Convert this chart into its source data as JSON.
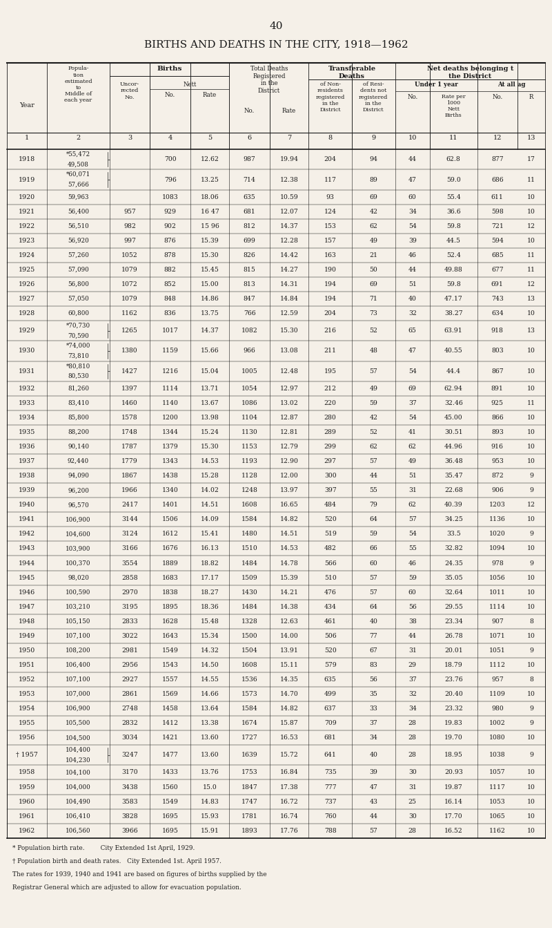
{
  "page_number": "40",
  "title": "BIRTHS AND DEATHS IN THE CITY, 1918—1962",
  "background_color": "#f5f0e8",
  "text_color": "#1a1a1a",
  "rows": [
    [
      "1918",
      "*55,472",
      "49,508",
      "",
      "700",
      "12.62",
      "987",
      "19.94",
      "204",
      "94",
      "44",
      "62.8",
      "877",
      "17"
    ],
    [
      "1919",
      "*60,071",
      "57,666",
      "",
      "796",
      "13.25",
      "714",
      "12.38",
      "117",
      "89",
      "47",
      "59.0",
      "686",
      "11"
    ],
    [
      "1920",
      "59,963",
      "",
      "",
      "1083",
      "18.06",
      "635",
      "10.59",
      "93",
      "69",
      "60",
      "55.4",
      "611",
      "10"
    ],
    [
      "1921",
      "56,400",
      "",
      "957",
      "929",
      "16 47",
      "681",
      "12.07",
      "124",
      "42",
      "34",
      "36.6",
      "598",
      "10"
    ],
    [
      "1922",
      "56,510",
      "",
      "982",
      "902",
      "15 96",
      "812",
      "14.37",
      "153",
      "62",
      "54",
      "59.8",
      "721",
      "12"
    ],
    [
      "1923",
      "56,920",
      "",
      "997",
      "876",
      "15.39",
      "699",
      "12.28",
      "157",
      "49",
      "39",
      "44.5",
      "594",
      "10"
    ],
    [
      "1924",
      "57,260",
      "",
      "1052",
      "878",
      "15.30",
      "826",
      "14.42",
      "163",
      "21",
      "46",
      "52.4",
      "685",
      "11"
    ],
    [
      "1925",
      "57,090",
      "",
      "1079",
      "882",
      "15.45",
      "815",
      "14.27",
      "190",
      "50",
      "44",
      "49.88",
      "677",
      "11"
    ],
    [
      "1926",
      "56,800",
      "",
      "1072",
      "852",
      "15.00",
      "813",
      "14.31",
      "194",
      "69",
      "51",
      "59.8",
      "691",
      "12"
    ],
    [
      "1927",
      "57,050",
      "",
      "1079",
      "848",
      "14.86",
      "847",
      "14.84",
      "194",
      "71",
      "40",
      "47.17",
      "743",
      "13"
    ],
    [
      "1928",
      "60,800",
      "",
      "1162",
      "836",
      "13.75",
      "766",
      "12.59",
      "204",
      "73",
      "32",
      "38.27",
      "634",
      "10"
    ],
    [
      "1929",
      "*70,730",
      "70,590",
      "1265",
      "1017",
      "14.37",
      "1082",
      "15.30",
      "216",
      "52",
      "65",
      "63.91",
      "918",
      "13"
    ],
    [
      "1930",
      "*74,000",
      "73,810",
      "1380",
      "1159",
      "15.66",
      "966",
      "13.08",
      "211",
      "48",
      "47",
      "40.55",
      "803",
      "10"
    ],
    [
      "1931",
      "*80,810",
      "80,530",
      "1427",
      "1216",
      "15.04",
      "1005",
      "12.48",
      "195",
      "57",
      "54",
      "44.4",
      "867",
      "10"
    ],
    [
      "1932",
      "81,260",
      "",
      "1397",
      "1114",
      "13.71",
      "1054",
      "12.97",
      "212",
      "49",
      "69",
      "62.94",
      "891",
      "10"
    ],
    [
      "1933",
      "83,410",
      "",
      "1460",
      "1140",
      "13.67",
      "1086",
      "13.02",
      "220",
      "59",
      "37",
      "32.46",
      "925",
      "11"
    ],
    [
      "1934",
      "85,800",
      "",
      "1578",
      "1200",
      "13.98",
      "1104",
      "12.87",
      "280",
      "42",
      "54",
      "45.00",
      "866",
      "10"
    ],
    [
      "1935",
      "88,200",
      "",
      "1748",
      "1344",
      "15.24",
      "1130",
      "12.81",
      "289",
      "52",
      "41",
      "30.51",
      "893",
      "10"
    ],
    [
      "1936",
      "90,140",
      "",
      "1787",
      "1379",
      "15.30",
      "1153",
      "12.79",
      "299",
      "62",
      "62",
      "44.96",
      "916",
      "10"
    ],
    [
      "1937",
      "92,440",
      "",
      "1779",
      "1343",
      "14.53",
      "1193",
      "12.90",
      "297",
      "57",
      "49",
      "36.48",
      "953",
      "10"
    ],
    [
      "1938",
      "94,090",
      "",
      "1867",
      "1438",
      "15.28",
      "1128",
      "12.00",
      "300",
      "44",
      "51",
      "35.47",
      "872",
      "9"
    ],
    [
      "1939",
      "96,200",
      "",
      "1966",
      "1340",
      "14.02",
      "1248",
      "13.97",
      "397",
      "55",
      "31",
      "22.68",
      "906",
      "9"
    ],
    [
      "1940",
      "96,570",
      "",
      "2417",
      "1401",
      "14.51",
      "1608",
      "16.65",
      "484",
      "79",
      "62",
      "40.39",
      "1203",
      "12"
    ],
    [
      "1941",
      "106,900",
      "",
      "3144",
      "1506",
      "14.09",
      "1584",
      "14.82",
      "520",
      "64",
      "57",
      "34.25",
      "1136",
      "10"
    ],
    [
      "1942",
      "104,600",
      "",
      "3124",
      "1612",
      "15.41",
      "1480",
      "14.51",
      "519",
      "59",
      "54",
      "33.5",
      "1020",
      "9"
    ],
    [
      "1943",
      "103,900",
      "",
      "3166",
      "1676",
      "16.13",
      "1510",
      "14.53",
      "482",
      "66",
      "55",
      "32.82",
      "1094",
      "10"
    ],
    [
      "1944",
      "100,370",
      "",
      "3554",
      "1889",
      "18.82",
      "1484",
      "14.78",
      "566",
      "60",
      "46",
      "24.35",
      "978",
      "9"
    ],
    [
      "1945",
      "98,020",
      "",
      "2858",
      "1683",
      "17.17",
      "1509",
      "15.39",
      "510",
      "57",
      "59",
      "35.05",
      "1056",
      "10"
    ],
    [
      "1946",
      "100,590",
      "",
      "2970",
      "1838",
      "18.27",
      "1430",
      "14.21",
      "476",
      "57",
      "60",
      "32.64",
      "1011",
      "10"
    ],
    [
      "1947",
      "103,210",
      "",
      "3195",
      "1895",
      "18.36",
      "1484",
      "14.38",
      "434",
      "64",
      "56",
      "29.55",
      "1114",
      "10"
    ],
    [
      "1948",
      "105,150",
      "",
      "2833",
      "1628",
      "15.48",
      "1328",
      "12.63",
      "461",
      "40",
      "38",
      "23.34",
      "907",
      "8"
    ],
    [
      "1949",
      "107,100",
      "",
      "3022",
      "1643",
      "15.34",
      "1500",
      "14.00",
      "506",
      "77",
      "44",
      "26.78",
      "1071",
      "10"
    ],
    [
      "1950",
      "108,200",
      "",
      "2981",
      "1549",
      "14.32",
      "1504",
      "13.91",
      "520",
      "67",
      "31",
      "20.01",
      "1051",
      "9"
    ],
    [
      "1951",
      "106,400",
      "",
      "2956",
      "1543",
      "14.50",
      "1608",
      "15.11",
      "579",
      "83",
      "29",
      "18.79",
      "1112",
      "10"
    ],
    [
      "1952",
      "107,100",
      "",
      "2927",
      "1557",
      "14.55",
      "1536",
      "14.35",
      "635",
      "56",
      "37",
      "23.76",
      "957",
      "8"
    ],
    [
      "1953",
      "107,000",
      "",
      "2861",
      "1569",
      "14.66",
      "1573",
      "14.70",
      "499",
      "35",
      "32",
      "20.40",
      "1109",
      "10"
    ],
    [
      "1954",
      "106,900",
      "",
      "2748",
      "1458",
      "13.64",
      "1584",
      "14.82",
      "637",
      "33",
      "34",
      "23.32",
      "980",
      "9"
    ],
    [
      "1955",
      "105,500",
      "",
      "2832",
      "1412",
      "13.38",
      "1674",
      "15.87",
      "709",
      "37",
      "28",
      "19.83",
      "1002",
      "9"
    ],
    [
      "1956",
      "104,500",
      "",
      "3034",
      "1421",
      "13.60",
      "1727",
      "16.53",
      "681",
      "34",
      "28",
      "19.70",
      "1080",
      "10"
    ],
    [
      "1957",
      "104,400",
      "104,230",
      "3247",
      "1477",
      "13.60",
      "1639",
      "15.72",
      "641",
      "40",
      "28",
      "18.95",
      "1038",
      "9"
    ],
    [
      "1958",
      "104,100",
      "",
      "3170",
      "1433",
      "13.76",
      "1753",
      "16.84",
      "735",
      "39",
      "30",
      "20.93",
      "1057",
      "10"
    ],
    [
      "1959",
      "104,000",
      "",
      "3438",
      "1560",
      "15.0",
      "1847",
      "17.38",
      "777",
      "47",
      "31",
      "19.87",
      "1117",
      "10"
    ],
    [
      "1960",
      "104,490",
      "",
      "3583",
      "1549",
      "14.83",
      "1747",
      "16.72",
      "737",
      "43",
      "25",
      "16.14",
      "1053",
      "10"
    ],
    [
      "1961",
      "106,410",
      "",
      "3828",
      "1695",
      "15.93",
      "1781",
      "16.74",
      "760",
      "44",
      "30",
      "17.70",
      "1065",
      "10"
    ],
    [
      "1962",
      "106,560",
      "",
      "3966",
      "1695",
      "15.91",
      "1893",
      "17.76",
      "788",
      "57",
      "28",
      "16.52",
      "1162",
      "10"
    ]
  ],
  "two_line_years": [
    "1918",
    "1919",
    "1929",
    "1930",
    "1931",
    "1957"
  ],
  "dagger_year": "1957",
  "footnotes": [
    "* Population birth rate.        City Extended 1st April, 1929.",
    "† Population birth and death rates.   City Extended 1st. April 1957.",
    "The rates for 1939, 1940 and 1941 are based on figures of births supplied by the",
    "Registrar General which are adjusted to allow for evacuation population."
  ]
}
